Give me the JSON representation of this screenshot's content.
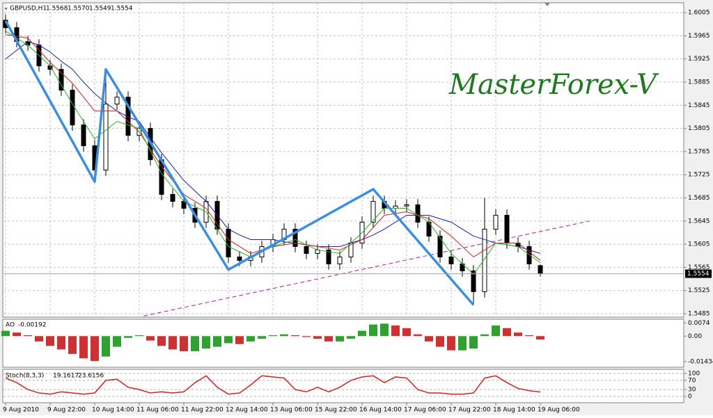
{
  "chart_data": [
    {
      "type": "candlestick",
      "symbol": "GBPUSD,H1",
      "ohlc_labels": [
        "1.5568",
        "1.5570",
        "1.5549",
        "1.5554"
      ],
      "watermark": "MasterForex-V",
      "categories": [
        "9 Aug 2010",
        null,
        null,
        null,
        "9 Aug 22:00",
        null,
        null,
        null,
        "10 Aug 14:00",
        null,
        null,
        null,
        "11 Aug 06:00",
        null,
        null,
        null,
        "11 Aug 22:00",
        null,
        null,
        null,
        "12 Aug 14:00",
        null,
        null,
        null,
        "13 Aug 06:00",
        null,
        null,
        null,
        "15 Aug 22:00",
        null,
        null,
        null,
        "16 Aug 14:00",
        null,
        null,
        null,
        "17 Aug 06:00",
        null,
        null,
        null,
        "17 Aug 22:00",
        null,
        null,
        null,
        "18 Aug 14:00",
        null,
        null,
        null,
        "19 Aug 06:00"
      ],
      "open": [
        1.5992,
        1.5979,
        1.5955,
        1.5949,
        1.5913,
        1.5907,
        1.5871,
        1.5811,
        1.5775,
        1.5733,
        1.5847,
        1.5859,
        1.5793,
        1.5805,
        1.5751,
        1.5691,
        1.5679,
        1.5667,
        1.5643,
        1.5679,
        1.5631,
        1.5583,
        1.5577,
        1.5583,
        1.5601,
        1.5613,
        1.5631,
        1.5601,
        1.5589,
        1.5595,
        1.5571,
        1.5583,
        1.5607,
        1.5643,
        1.5679,
        1.5667,
        1.5671,
        1.5673,
        1.5643,
        1.5619,
        1.5583,
        1.5571,
        1.5559,
        1.5523,
        1.5631,
        1.5655,
        1.5607,
        1.5601,
        1.5568
      ],
      "high": [
        1.6002,
        1.5989,
        1.5965,
        1.5959,
        1.5923,
        1.5917,
        1.5881,
        1.5821,
        1.5785,
        1.5907,
        1.5869,
        1.5869,
        1.5815,
        1.5815,
        1.5761,
        1.5701,
        1.5689,
        1.5677,
        1.5689,
        1.5689,
        1.5641,
        1.5593,
        1.5593,
        1.5611,
        1.5623,
        1.5641,
        1.5641,
        1.5611,
        1.5605,
        1.5605,
        1.5593,
        1.5617,
        1.5653,
        1.5689,
        1.5689,
        1.5681,
        1.5683,
        1.5683,
        1.5653,
        1.5629,
        1.5593,
        1.5581,
        1.5569,
        1.5685,
        1.5665,
        1.5665,
        1.5617,
        1.5611,
        1.557
      ],
      "low": [
        1.5969,
        1.5945,
        1.5939,
        1.5903,
        1.5897,
        1.5861,
        1.5801,
        1.5765,
        1.5713,
        1.5723,
        1.5837,
        1.5783,
        1.5783,
        1.5741,
        1.5681,
        1.5669,
        1.5657,
        1.5633,
        1.5633,
        1.5621,
        1.5573,
        1.5567,
        1.5567,
        1.5573,
        1.5591,
        1.5603,
        1.5591,
        1.5579,
        1.5579,
        1.5561,
        1.5561,
        1.5573,
        1.5597,
        1.5633,
        1.5657,
        1.5657,
        1.5661,
        1.5633,
        1.5609,
        1.5573,
        1.5561,
        1.5549,
        1.55,
        1.5513,
        1.5621,
        1.5597,
        1.5591,
        1.5561,
        1.5549
      ],
      "close": [
        1.5979,
        1.5955,
        1.5949,
        1.5913,
        1.5907,
        1.5871,
        1.5811,
        1.5775,
        1.5733,
        1.5847,
        1.5859,
        1.5793,
        1.5805,
        1.5751,
        1.5691,
        1.5679,
        1.5667,
        1.5643,
        1.5679,
        1.5631,
        1.5583,
        1.5577,
        1.5583,
        1.5601,
        1.5613,
        1.5631,
        1.5601,
        1.5589,
        1.5595,
        1.5571,
        1.5583,
        1.5607,
        1.5643,
        1.5679,
        1.5667,
        1.5671,
        1.5673,
        1.5643,
        1.5619,
        1.5583,
        1.5571,
        1.5559,
        1.5523,
        1.5631,
        1.5655,
        1.5607,
        1.5601,
        1.5571,
        1.5554
      ],
      "series": [
        {
          "color": "#1c1cb4",
          "values": [
            1.5925,
            1.594,
            1.5955,
            1.5949,
            1.5937,
            1.5921,
            1.5907,
            1.5885,
            1.5865,
            1.5849,
            1.5835,
            1.5825,
            1.5817,
            1.5789,
            1.5763,
            1.5739,
            1.5715,
            1.5697,
            1.5679,
            1.5655,
            1.5631,
            1.5621,
            1.5613,
            1.5613,
            1.5613,
            1.5609,
            1.5607,
            1.5604,
            1.5601,
            1.5601,
            1.5601,
            1.5607,
            1.5613,
            1.5621,
            1.5631,
            1.5643,
            1.5655,
            1.5655,
            1.5655,
            1.5649,
            1.5643,
            1.5631,
            1.5619,
            1.5613,
            1.5607,
            1.5604,
            1.5601,
            1.5595,
            1.5589
          ]
        },
        {
          "color": "#d42020",
          "values": [
            1.5967,
            1.5964,
            1.5961,
            1.594,
            1.5919,
            1.5901,
            1.5883,
            1.5859,
            1.5835,
            1.5835,
            1.5835,
            1.5817,
            1.5799,
            1.5769,
            1.5739,
            1.5715,
            1.5691,
            1.5679,
            1.5667,
            1.564,
            1.5613,
            1.5601,
            1.5589,
            1.5595,
            1.5601,
            1.5604,
            1.5607,
            1.5604,
            1.5601,
            1.5598,
            1.5595,
            1.5604,
            1.5613,
            1.5634,
            1.5655,
            1.5658,
            1.5661,
            1.5655,
            1.5649,
            1.5634,
            1.5619,
            1.5601,
            1.5583,
            1.5595,
            1.5607,
            1.5607,
            1.5607,
            1.5592,
            1.5577
          ]
        },
        {
          "color": "#20b820",
          "values": [
            1.5973,
            1.5961,
            1.5949,
            1.5931,
            1.5913,
            1.588,
            1.5847,
            1.5817,
            1.5787,
            1.5802,
            1.5817,
            1.5811,
            1.5805,
            1.5766,
            1.5727,
            1.5703,
            1.5679,
            1.567,
            1.5661,
            1.5631,
            1.5601,
            1.5592,
            1.5583,
            1.5592,
            1.5601,
            1.5607,
            1.5613,
            1.5604,
            1.5595,
            1.5592,
            1.5589,
            1.5607,
            1.5625,
            1.5646,
            1.5667,
            1.5667,
            1.5667,
            1.5655,
            1.5643,
            1.5616,
            1.5589,
            1.5571,
            1.5553,
            1.558,
            1.5607,
            1.5604,
            1.5601,
            1.5587,
            1.5573
          ]
        }
      ],
      "zigzag": {
        "color": "#3a8ee6",
        "x": [
          0,
          8,
          9,
          20,
          33,
          42
        ],
        "values": [
          1.5991,
          1.5713,
          1.5907,
          1.5561,
          1.57,
          1.55
        ]
      },
      "trendline": {
        "color": "#a020a0",
        "x": [
          12.4,
          52.4
        ],
        "values": [
          1.5481,
          1.5645
        ]
      },
      "ylim": [
        1.5479,
        1.6022
      ],
      "yticks": [
        1.6005,
        1.5965,
        1.5925,
        1.5885,
        1.5845,
        1.5805,
        1.5765,
        1.5725,
        1.5685,
        1.5645,
        1.5605,
        1.5565,
        1.5525,
        1.5485
      ],
      "grid": true,
      "bull_color": "#ffffff",
      "bear_color": "#000000"
    },
    {
      "type": "bar",
      "title": "AO",
      "up_color": "#2ea12e",
      "down_color": "#d03030",
      "values": [
        0.003,
        0.002,
        0.0005,
        -0.003,
        -0.0055,
        -0.0075,
        -0.01,
        -0.0125,
        -0.014,
        -0.0115,
        -0.006,
        -0.001,
        0.0005,
        -0.0025,
        -0.0055,
        -0.0075,
        -0.0085,
        -0.0085,
        -0.007,
        -0.006,
        -0.004,
        -0.0045,
        -0.003,
        -0.0015,
        0.0005,
        0.001,
        0.0005,
        -0.0005,
        -0.0015,
        -0.003,
        -0.003,
        -0.0015,
        0.003,
        0.0065,
        0.007,
        0.006,
        0.0045,
        0.001,
        -0.003,
        -0.006,
        -0.008,
        -0.008,
        -0.007,
        0.001,
        0.006,
        0.0045,
        0.002,
        0.0005,
        -0.00192
      ],
      "ylim": [
        -0.0175,
        0.0091
      ],
      "yticks": [
        0.0074,
        {
          "value": 0,
          "label": "0.00"
        },
        -0.01434
      ]
    },
    {
      "type": "line",
      "title": "Stoch(8,3,3)",
      "signal_value": 23.6156,
      "color": "#d42020",
      "values": [
        80,
        60,
        30,
        15,
        10,
        20,
        15,
        10,
        15,
        70,
        75,
        40,
        30,
        15,
        20,
        15,
        20,
        60,
        90,
        40,
        10,
        15,
        50,
        90,
        85,
        80,
        30,
        20,
        40,
        20,
        40,
        70,
        85,
        90,
        60,
        85,
        80,
        30,
        15,
        15,
        10,
        10,
        15,
        80,
        90,
        60,
        35,
        25,
        19.1617
      ],
      "ylim": [
        0,
        100
      ],
      "yticks": [
        100,
        70,
        30,
        0
      ]
    }
  ]
}
